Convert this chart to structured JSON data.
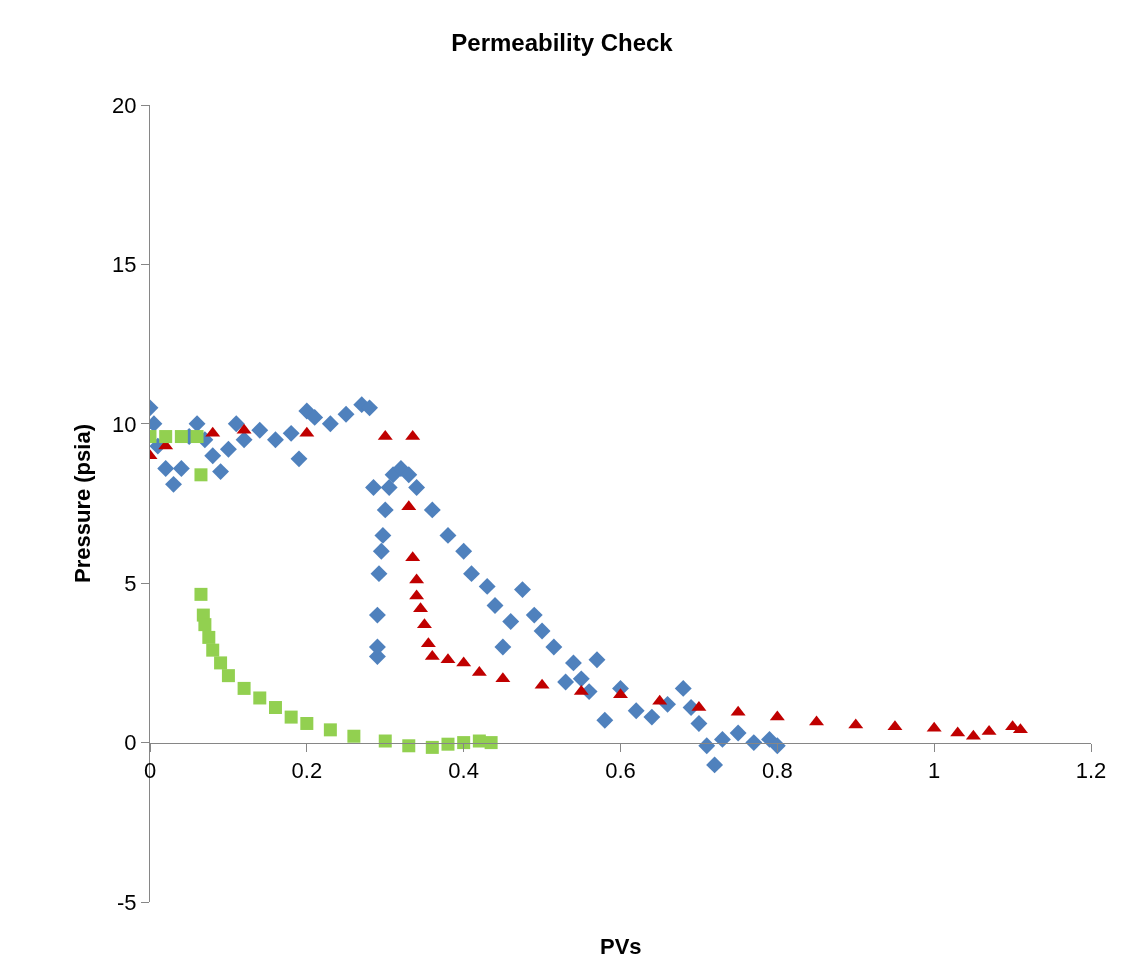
{
  "chart_data": {
    "type": "scatter",
    "title": "Permeability Check",
    "xlabel": "PVs",
    "ylabel": "Pressure (psia)",
    "xlim": [
      0,
      1.2
    ],
    "ylim": [
      -5,
      20
    ],
    "xticks": [
      0,
      0.2,
      0.4,
      0.6,
      0.8,
      1,
      1.2
    ],
    "yticks": [
      -5,
      0,
      5,
      10,
      15,
      20
    ],
    "series": [
      {
        "color": "#4f81bd",
        "marker": "diamond",
        "x": [
          0.0,
          0.005,
          0.01,
          0.02,
          0.03,
          0.04,
          0.05,
          0.06,
          0.07,
          0.08,
          0.09,
          0.1,
          0.11,
          0.12,
          0.14,
          0.16,
          0.18,
          0.19,
          0.2,
          0.21,
          0.23,
          0.25,
          0.27,
          0.28,
          0.285,
          0.29,
          0.29,
          0.29,
          0.292,
          0.295,
          0.297,
          0.3,
          0.305,
          0.31,
          0.32,
          0.33,
          0.34,
          0.36,
          0.38,
          0.4,
          0.41,
          0.43,
          0.44,
          0.45,
          0.46,
          0.475,
          0.49,
          0.5,
          0.515,
          0.53,
          0.54,
          0.55,
          0.56,
          0.57,
          0.58,
          0.6,
          0.62,
          0.64,
          0.66,
          0.68,
          0.69,
          0.7,
          0.71,
          0.72,
          0.73,
          0.75,
          0.77,
          0.79,
          0.8
        ],
        "values": [
          10.5,
          10.0,
          9.3,
          8.6,
          8.1,
          8.6,
          9.6,
          10.0,
          9.5,
          9.0,
          8.5,
          9.2,
          10.0,
          9.5,
          9.8,
          9.5,
          9.7,
          8.9,
          10.4,
          10.2,
          10.0,
          10.3,
          10.6,
          10.5,
          8.0,
          2.7,
          3.0,
          4.0,
          5.3,
          6.0,
          6.5,
          7.3,
          8.0,
          8.4,
          8.6,
          8.4,
          8.0,
          7.3,
          6.5,
          6.0,
          5.3,
          4.9,
          4.3,
          3.0,
          3.8,
          4.8,
          4.0,
          3.5,
          3.0,
          1.9,
          2.5,
          2.0,
          1.6,
          2.6,
          0.7,
          1.7,
          1.0,
          0.8,
          1.2,
          1.7,
          1.1,
          0.6,
          -0.1,
          -0.7,
          0.1,
          0.3,
          0.0,
          0.1,
          -0.1
        ]
      },
      {
        "color": "#c00000",
        "marker": "triangle",
        "x": [
          0.0,
          0.02,
          0.08,
          0.12,
          0.2,
          0.3,
          0.335,
          0.33,
          0.335,
          0.34,
          0.34,
          0.345,
          0.35,
          0.355,
          0.36,
          0.38,
          0.4,
          0.42,
          0.45,
          0.5,
          0.55,
          0.6,
          0.65,
          0.7,
          0.75,
          0.8,
          0.85,
          0.9,
          0.95,
          1.0,
          1.03,
          1.05,
          1.07,
          1.1,
          1.11
        ],
        "values": [
          9.0,
          9.3,
          9.7,
          9.8,
          9.7,
          9.6,
          9.6,
          7.4,
          5.8,
          5.1,
          4.6,
          4.2,
          3.7,
          3.1,
          2.7,
          2.6,
          2.5,
          2.2,
          2.0,
          1.8,
          1.6,
          1.5,
          1.3,
          1.1,
          0.95,
          0.8,
          0.65,
          0.55,
          0.5,
          0.45,
          0.3,
          0.2,
          0.35,
          0.5,
          0.4
        ]
      },
      {
        "color": "#92d050",
        "marker": "square",
        "x": [
          0.0,
          0.02,
          0.04,
          0.06,
          0.065,
          0.065,
          0.068,
          0.07,
          0.075,
          0.08,
          0.09,
          0.1,
          0.12,
          0.14,
          0.16,
          0.18,
          0.2,
          0.23,
          0.26,
          0.3,
          0.33,
          0.36,
          0.38,
          0.4,
          0.42,
          0.435
        ],
        "values": [
          9.6,
          9.6,
          9.6,
          9.6,
          8.4,
          4.65,
          4.0,
          3.7,
          3.3,
          2.9,
          2.5,
          2.1,
          1.7,
          1.4,
          1.1,
          0.8,
          0.6,
          0.4,
          0.2,
          0.05,
          -0.1,
          -0.15,
          -0.05,
          0.0,
          0.05,
          0.0
        ]
      }
    ]
  }
}
